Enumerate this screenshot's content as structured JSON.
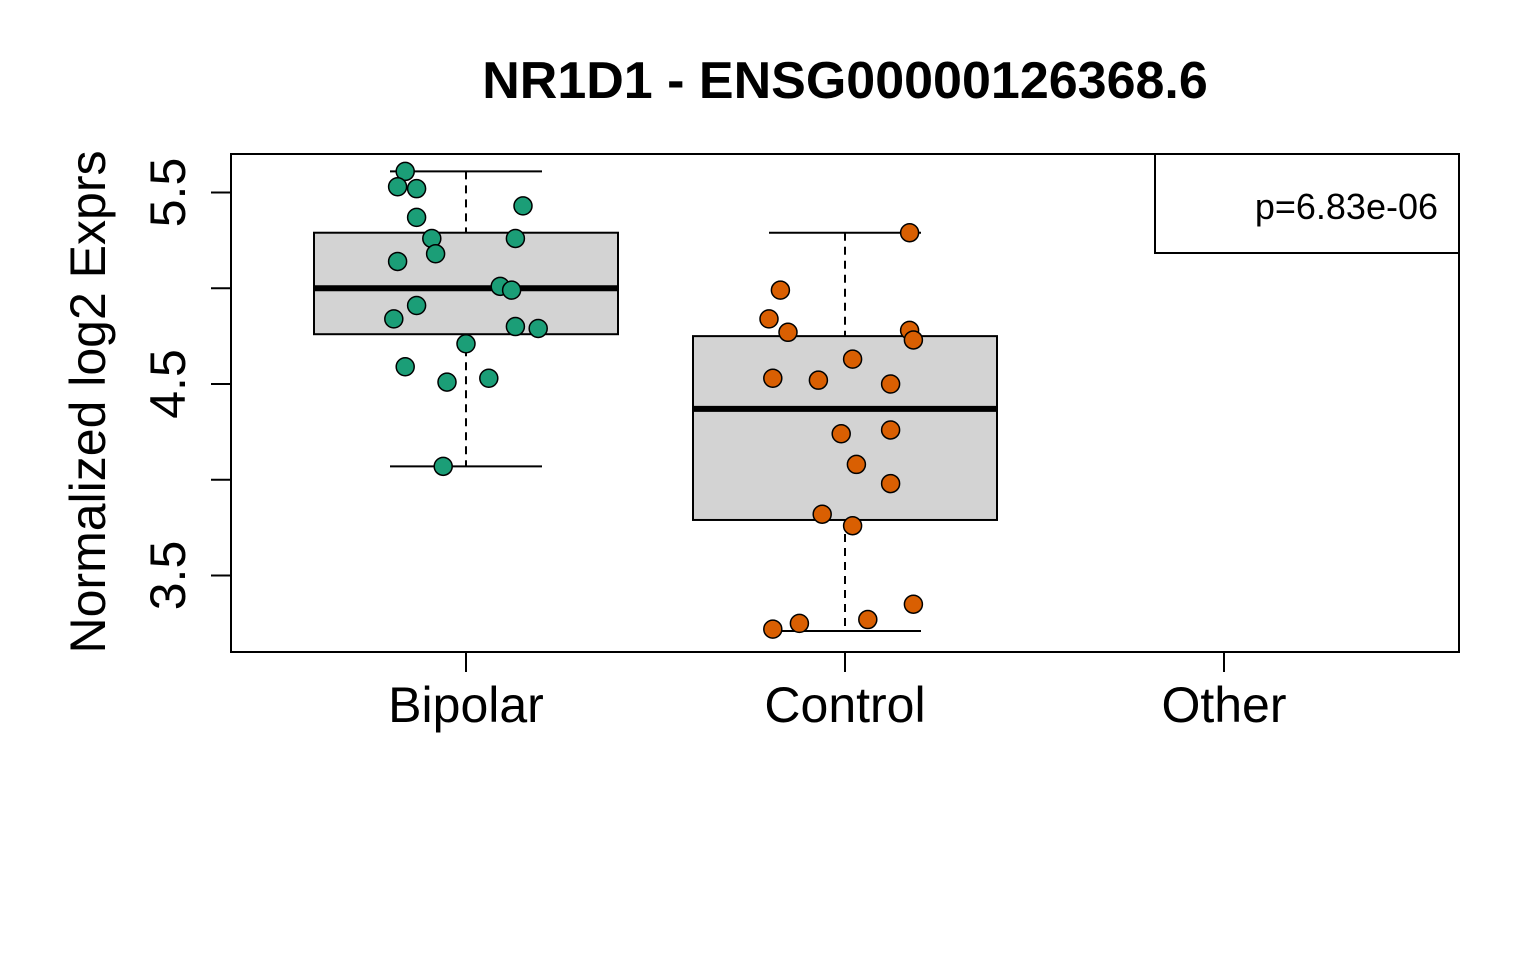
{
  "chart_data": {
    "type": "boxplot",
    "title": "NR1D1 - ENSG00000126368.6",
    "xlabel": "",
    "ylabel": "Normalized log2 Exprs",
    "ylim": [
      3.1,
      5.7
    ],
    "yticks": [
      3.5,
      4.0,
      4.5,
      5.0,
      5.5
    ],
    "ytick_labels": [
      "3.5",
      "",
      "4.5",
      "",
      "5.5"
    ],
    "categories": [
      "Bipolar",
      "Control",
      "Other"
    ],
    "annotation": "p=6.83e-06",
    "groups": [
      {
        "category": "Bipolar",
        "color": "#1b9e77",
        "box": {
          "whisker_low": 4.07,
          "q1": 4.76,
          "median": 5.0,
          "q3": 5.29,
          "whisker_high": 5.61
        },
        "points": [
          [
            -0.16,
            5.61
          ],
          [
            -0.18,
            5.53
          ],
          [
            -0.13,
            5.52
          ],
          [
            0.15,
            5.43
          ],
          [
            -0.13,
            5.37
          ],
          [
            -0.09,
            5.26
          ],
          [
            0.13,
            5.26
          ],
          [
            -0.08,
            5.18
          ],
          [
            -0.18,
            5.14
          ],
          [
            0.09,
            5.01
          ],
          [
            0.12,
            4.99
          ],
          [
            -0.13,
            4.91
          ],
          [
            -0.19,
            4.84
          ],
          [
            0.13,
            4.8
          ],
          [
            0.19,
            4.79
          ],
          [
            0.0,
            4.71
          ],
          [
            -0.16,
            4.59
          ],
          [
            -0.05,
            4.51
          ],
          [
            0.06,
            4.53
          ],
          [
            -0.06,
            4.07
          ]
        ]
      },
      {
        "category": "Control",
        "color": "#d95f02",
        "box": {
          "whisker_low": 3.21,
          "q1": 3.79,
          "median": 4.37,
          "q3": 4.75,
          "whisker_high": 5.29
        },
        "points": [
          [
            0.17,
            5.29
          ],
          [
            -0.17,
            4.99
          ],
          [
            -0.2,
            4.84
          ],
          [
            -0.15,
            4.77
          ],
          [
            0.17,
            4.78
          ],
          [
            0.18,
            4.73
          ],
          [
            0.02,
            4.63
          ],
          [
            -0.19,
            4.53
          ],
          [
            -0.07,
            4.52
          ],
          [
            0.12,
            4.5
          ],
          [
            -0.01,
            4.24
          ],
          [
            0.12,
            4.26
          ],
          [
            0.03,
            4.08
          ],
          [
            0.12,
            3.98
          ],
          [
            -0.06,
            3.82
          ],
          [
            0.02,
            3.76
          ],
          [
            0.18,
            3.35
          ],
          [
            0.06,
            3.27
          ],
          [
            -0.12,
            3.25
          ],
          [
            -0.19,
            3.22
          ]
        ]
      },
      {
        "category": "Other",
        "color": "",
        "box": null,
        "points": []
      }
    ]
  }
}
